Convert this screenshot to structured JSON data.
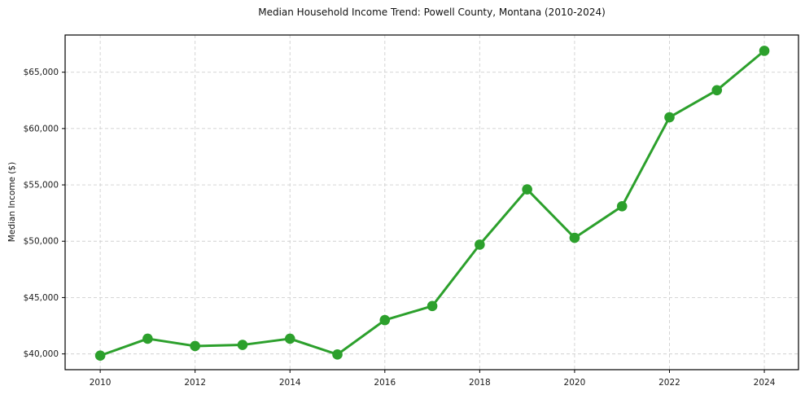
{
  "chart_data": {
    "type": "line",
    "title": "Median Household Income Trend: Powell County, Montana (2010-2024)",
    "xlabel": "",
    "ylabel": "Median Income ($)",
    "series": [
      {
        "name": "Median household income",
        "x": [
          2010,
          2011,
          2012,
          2013,
          2014,
          2015,
          2016,
          2017,
          2018,
          2019,
          2020,
          2021,
          2022,
          2023,
          2024
        ],
        "values": [
          39850,
          41350,
          40700,
          40800,
          41350,
          39950,
          43000,
          44250,
          49700,
          54600,
          50300,
          53100,
          61000,
          63400,
          66900
        ]
      }
    ],
    "xlim": [
      2009.26,
      2024.72
    ],
    "ylim": [
      38600,
      68300
    ],
    "xticks": [
      2010,
      2012,
      2014,
      2016,
      2018,
      2020,
      2022,
      2024
    ],
    "xtick_labels": [
      "2010",
      "2012",
      "2014",
      "2016",
      "2018",
      "2020",
      "2022",
      "2024"
    ],
    "yticks": [
      40000,
      45000,
      50000,
      55000,
      60000,
      65000
    ],
    "ytick_labels": [
      "$40,000",
      "$45,000",
      "$50,000",
      "$55,000",
      "$60,000",
      "$65,000"
    ],
    "grid": true,
    "grid_style": "dashed",
    "legend": false,
    "marker": "circle",
    "colors": {
      "line": "#2ca02c",
      "marker": "#2ca02c",
      "grid": "#d0d0d0",
      "axis": "#000000",
      "tick_text": "#1a1a1a",
      "background": "#ffffff"
    }
  }
}
